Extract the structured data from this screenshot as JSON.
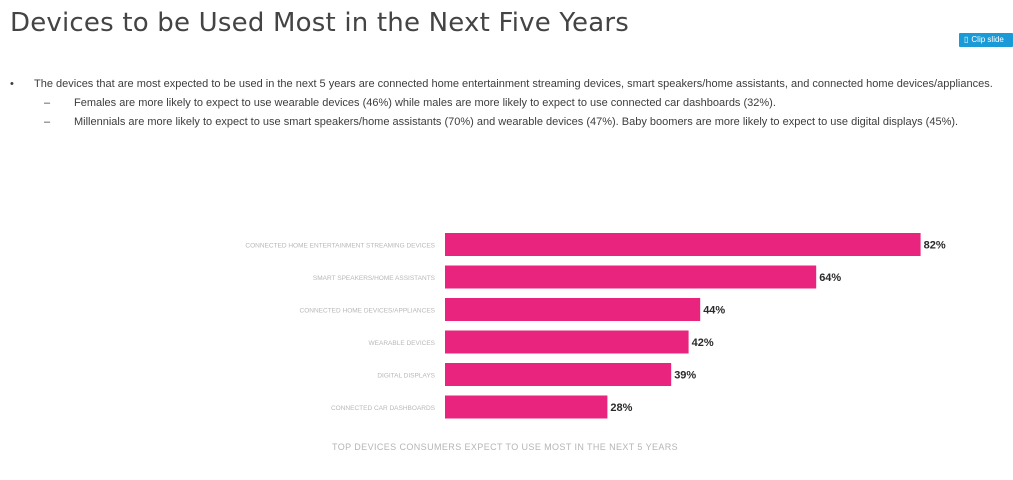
{
  "slide": {
    "title": "Devices to be Used Most in the Next Five Years",
    "clip_button_label": "Clip slide"
  },
  "bullets": {
    "main": "The devices that are most expected to be used in the next 5 years are connected home entertainment streaming devices, smart speakers/home assistants, and connected home devices/appliances.",
    "sub": [
      "Females are more likely to expect to use wearable devices (46%) while males are more likely to expect to use connected car dashboards (32%).",
      "Millennials are more likely to expect to use smart speakers/home assistants (70%) and wearable devices (47%). Baby boomers are more likely to expect to use digital displays (45%)."
    ]
  },
  "chart_data": {
    "type": "bar",
    "orientation": "horizontal",
    "categories": [
      "CONNECTED HOME ENTERTAINMENT STREAMING DEVICES",
      "SMART SPEAKERS/HOME ASSISTANTS",
      "CONNECTED HOME DEVICES/APPLIANCES",
      "WEARABLE DEVICES",
      "DIGITAL DISPLAYS",
      "CONNECTED CAR DASHBOARDS"
    ],
    "values": [
      82,
      64,
      44,
      42,
      39,
      28
    ],
    "value_labels": [
      "82%",
      "64%",
      "44%",
      "42%",
      "39%",
      "28%"
    ],
    "caption": "TOP DEVICES CONSUMERS EXPECT TO USE MOST IN THE NEXT 5 YEARS",
    "xlim": [
      0,
      100
    ],
    "bar_color": "#e8247f",
    "grid": false
  }
}
